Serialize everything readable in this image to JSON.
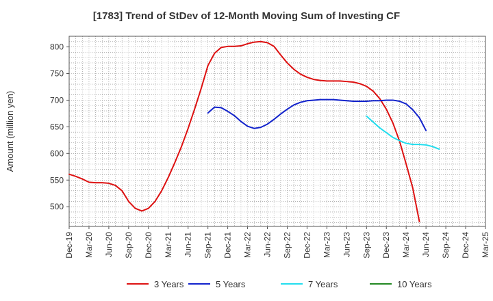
{
  "chart_data": {
    "type": "line",
    "title": "[1783]  Trend of StDev of 12-Month Moving Sum of Investing CF",
    "ylabel": "Amount (million yen)",
    "xlabel": "",
    "ylim": [
      463,
      820
    ],
    "yticks": [
      500,
      550,
      600,
      650,
      700,
      750,
      800
    ],
    "x_ticks": [
      "Dec-19",
      "Mar-20",
      "Jun-20",
      "Sep-20",
      "Dec-20",
      "Mar-21",
      "Jun-21",
      "Sep-21",
      "Dec-21",
      "Mar-22",
      "Jun-22",
      "Sep-22",
      "Dec-22",
      "Mar-23",
      "Jun-23",
      "Sep-23",
      "Dec-23",
      "Mar-24",
      "Jun-24",
      "Sep-24",
      "Dec-24",
      "Mar-25"
    ],
    "grid": true,
    "legend_position": "bottom",
    "series": [
      {
        "name": "3 Years",
        "color": "#dd1111",
        "start_index": 0,
        "values": [
          561,
          557,
          552,
          546,
          545,
          545,
          544,
          540,
          530,
          510,
          497,
          492,
          497,
          510,
          530,
          555,
          583,
          613,
          647,
          684,
          723,
          765,
          788,
          799,
          801,
          801,
          802,
          806,
          809,
          810,
          808,
          801,
          785,
          770,
          758,
          749,
          743,
          739,
          737,
          736,
          736,
          736,
          735,
          734,
          731,
          726,
          717,
          703,
          683,
          657,
          623,
          580,
          535,
          472
        ]
      },
      {
        "name": "5 Years",
        "color": "#1122cc",
        "start_index": 21,
        "values": [
          676,
          687,
          686,
          679,
          671,
          660,
          651,
          647,
          649,
          655,
          664,
          674,
          683,
          691,
          696,
          699,
          700,
          701,
          701,
          701,
          700,
          699,
          698,
          698,
          698,
          699,
          699,
          700,
          700,
          698,
          693,
          682,
          667,
          643
        ]
      },
      {
        "name": "7 Years",
        "color": "#22ddee",
        "start_index": 45,
        "values": [
          670,
          659,
          648,
          639,
          630,
          624,
          619,
          617,
          617,
          616,
          613,
          608
        ]
      },
      {
        "name": "10 Years",
        "color": "#228822",
        "start_index": 0,
        "values": []
      }
    ]
  }
}
